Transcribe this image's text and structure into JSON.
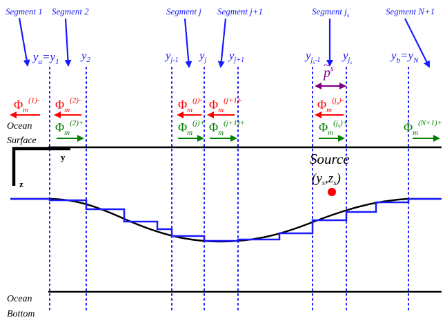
{
  "segments": {
    "seg1": "Segment 1",
    "seg2": "Segment 2",
    "segj": "Segment j",
    "segj1": "Segment j+1",
    "segjs_base": "Segment j",
    "segjs_sub": "s",
    "segN1": "Segment N+1"
  },
  "positions": {
    "ya_base": "y",
    "ya_sub": "a",
    "y1_base": "=y",
    "y1_sub": "1",
    "y2_base": "y",
    "y2_sub": "2",
    "yjm1_base": "y",
    "yjm1_sub": "j-1",
    "yj_base": "y",
    "yj_sub": "j",
    "yjp1_base": "y",
    "yjp1_sub": "j+1",
    "yjsm1_base": "y",
    "yjsm1_sub": "j",
    "yjsm1_subsub": "s",
    "yjsm1_tail": "-1",
    "yjs_base": "y",
    "yjs_sub": "j",
    "yjs_subsub": "s",
    "yb_base": "y",
    "yb_sub": "b",
    "yN_base": "=y",
    "yN_sub": "N"
  },
  "pressure": {
    "base": "p",
    "tilde": "~",
    "sup": "s"
  },
  "modes": {
    "phi": "Φ",
    "m": "m",
    "left_1": "(1)-",
    "left_2": "(2)-",
    "right_2": "(2)+",
    "left_j": "(j)-",
    "right_j": "(j)+",
    "left_j1": "(j+1)-",
    "right_j1": "(j+1)+",
    "left_js_pre": "(j",
    "left_js_sub": "s",
    "left_js_post": ")-",
    "right_js_pre": "(j",
    "right_js_sub": "s",
    "right_js_post": ")+",
    "right_N1": "(N+1)+"
  },
  "labels": {
    "ocean": "Ocean",
    "surface": "Surface",
    "bottom": "Bottom",
    "axis_y": "y",
    "axis_z": "z",
    "source": "Source",
    "source_coord_y": "y",
    "source_coord_y_sub": "s",
    "source_coord_z": "z",
    "source_coord_z_sub": "s",
    "source_open": "(",
    "source_comma": ",",
    "source_close": ")"
  },
  "colors": {
    "segment_label": "#1a1aff",
    "position_label": "#1a1aff",
    "boundary_dots": "#1a1aff",
    "staircase": "#1a1aff",
    "bathymetry": "#000000",
    "outgoing_mode": "#ff0000",
    "incoming_mode": "#008000",
    "source_pressure": "#800080",
    "source_point": "#ff0000"
  }
}
